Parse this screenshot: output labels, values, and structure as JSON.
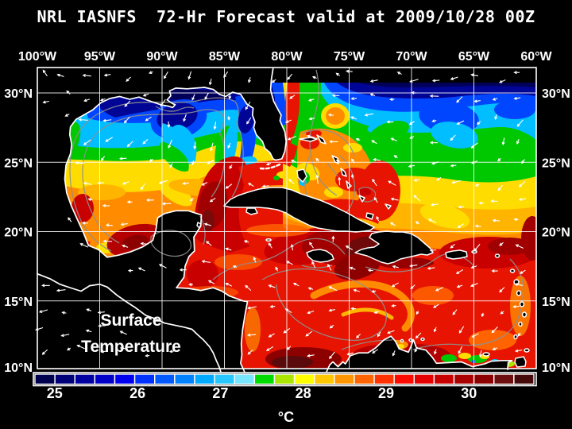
{
  "title": "NRL IASNFS  72-Hr Forecast valid at 2009/10/28 00Z",
  "map": {
    "overlay_line1": "Surface",
    "overlay_line2": "Temperature",
    "lon_ticks": [
      {
        "label": "100°W",
        "deg": 100
      },
      {
        "label": "95°W",
        "deg": 95
      },
      {
        "label": "90°W",
        "deg": 90
      },
      {
        "label": "85°W",
        "deg": 85
      },
      {
        "label": "80°W",
        "deg": 80
      },
      {
        "label": "75°W",
        "deg": 75
      },
      {
        "label": "70°W",
        "deg": 70
      },
      {
        "label": "65°W",
        "deg": 65
      },
      {
        "label": "60°W",
        "deg": 60
      }
    ],
    "lat_ticks": [
      {
        "label": "30°N",
        "deg": 30
      },
      {
        "label": "25°N",
        "deg": 25
      },
      {
        "label": "20°N",
        "deg": 20
      },
      {
        "label": "15°N",
        "deg": 15
      },
      {
        "label": "10°N",
        "deg": 10
      }
    ]
  },
  "colorbar": {
    "unit": "°C",
    "ticks": [
      {
        "label": "25",
        "value": 25
      },
      {
        "label": "26",
        "value": 26
      },
      {
        "label": "27",
        "value": 27
      },
      {
        "label": "28",
        "value": 28
      },
      {
        "label": "29",
        "value": 29
      },
      {
        "label": "30",
        "value": 30
      }
    ],
    "segment_colors": [
      "#000050",
      "#000078",
      "#0000a0",
      "#0000c8",
      "#0000f0",
      "#0032ff",
      "#005aff",
      "#0082ff",
      "#00aaff",
      "#28c8ff",
      "#78e6ff",
      "#00dc00",
      "#aae600",
      "#ffff00",
      "#ffc800",
      "#ff9600",
      "#ff6400",
      "#ff3200",
      "#ff0a00",
      "#e60000",
      "#c80000",
      "#aa0000",
      "#8c0000",
      "#6e0f0f",
      "#460a0a"
    ]
  },
  "colors": {
    "background": "#000000",
    "grid": "#ffffff",
    "coast": "#ffffff",
    "contour": "#909090",
    "text": "#ffffff"
  }
}
